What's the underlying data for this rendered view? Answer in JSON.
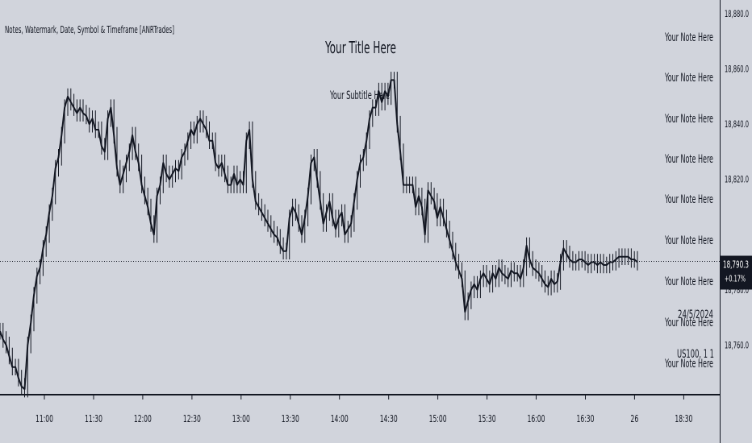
{
  "indicator_label": "Notes, Watermark, Date, Symbol & Timeframe [ANRTrades]",
  "title": "Your Title Here",
  "subtitle": "Your Subtitle Here",
  "notes": [
    "Your Note Here",
    "Your Note Here",
    "Your Note Here",
    "Your Note Here",
    "Your Note Here",
    "Your Note Here",
    "Your Note Here",
    "Your Note Here",
    "Your Note Here"
  ],
  "watermark": {
    "date": "24/5/2024",
    "symbol_timeframe": "US100, 1 1"
  },
  "price_label": {
    "price": "18,790.3",
    "change": "+0.17%"
  },
  "colors": {
    "background": "#d1d4dc",
    "candle": "#131722",
    "price_label_bg": "#131722",
    "price_label_text": "#ffffff",
    "text": "#131722"
  },
  "chart_data": {
    "type": "line",
    "title": "Your Title Here",
    "subtitle": "Your Subtitle Here",
    "x_ticks": [
      "11:00",
      "11:30",
      "12:00",
      "12:30",
      "13:00",
      "13:30",
      "14:00",
      "14:30",
      "15:00",
      "15:30",
      "16:00",
      "16:30",
      "26",
      "18:30"
    ],
    "y_ticks": [
      "18,880.0",
      "18,860.0",
      "18,840.0",
      "18,820.0",
      "18,780.0",
      "18,760.0"
    ],
    "y_tick_values": [
      18880,
      18860,
      18840,
      18820,
      18780,
      18760
    ],
    "ylim": [
      18742,
      18885
    ],
    "last_price": 18790.3,
    "series": [
      {
        "values": [
          18765,
          18762,
          18760,
          18756,
          18752,
          18752,
          18748,
          18745,
          18744,
          18760,
          18768,
          18778,
          18785,
          18788,
          18795,
          18800,
          18808,
          18814,
          18824,
          18828,
          18836,
          18846,
          18850,
          18848,
          18846,
          18844,
          18846,
          18844,
          18843,
          18840,
          18842,
          18838,
          18838,
          18832,
          18830,
          18842,
          18846,
          18836,
          18824,
          18818,
          18822,
          18826,
          18830,
          18836,
          18830,
          18826,
          18818,
          18814,
          18810,
          18804,
          18800,
          18814,
          18818,
          18826,
          18822,
          18820,
          18822,
          18824,
          18823,
          18828,
          18830,
          18834,
          18838,
          18836,
          18840,
          18842,
          18840,
          18838,
          18834,
          18834,
          18826,
          18824,
          18826,
          18822,
          18818,
          18818,
          18822,
          18818,
          18820,
          18818,
          18834,
          18838,
          18820,
          18812,
          18810,
          18808,
          18806,
          18804,
          18802,
          18800,
          18799,
          18796,
          18794,
          18794,
          18806,
          18810,
          18808,
          18804,
          18800,
          18806,
          18814,
          18826,
          18828,
          18820,
          18812,
          18804,
          18808,
          18812,
          18806,
          18802,
          18806,
          18808,
          18800,
          18802,
          18804,
          18812,
          18820,
          18826,
          18828,
          18834,
          18842,
          18846,
          18846,
          18852,
          18848,
          18852,
          18850,
          18856,
          18856,
          18840,
          18830,
          18818,
          18818,
          18818,
          18818,
          18810,
          18814,
          18810,
          18800,
          18816,
          18814,
          18812,
          18806,
          18810,
          18806,
          18802,
          18798,
          18794,
          18790,
          18787,
          18784,
          18772,
          18776,
          18780,
          18782,
          18780,
          18784,
          18786,
          18784,
          18782,
          18786,
          18784,
          18788,
          18786,
          18785,
          18784,
          18787,
          18786,
          18786,
          18784,
          18788,
          18796,
          18791,
          18788,
          18787,
          18786,
          18784,
          18782,
          18781,
          18784,
          18782,
          18783,
          18790,
          18795,
          18793,
          18791,
          18790,
          18790,
          18791,
          18791,
          18790,
          18789,
          18790,
          18790,
          18789,
          18790,
          18789,
          18789,
          18790,
          18790,
          18791,
          18792,
          18792,
          18792,
          18792,
          18791,
          18791,
          18790
        ]
      }
    ]
  }
}
